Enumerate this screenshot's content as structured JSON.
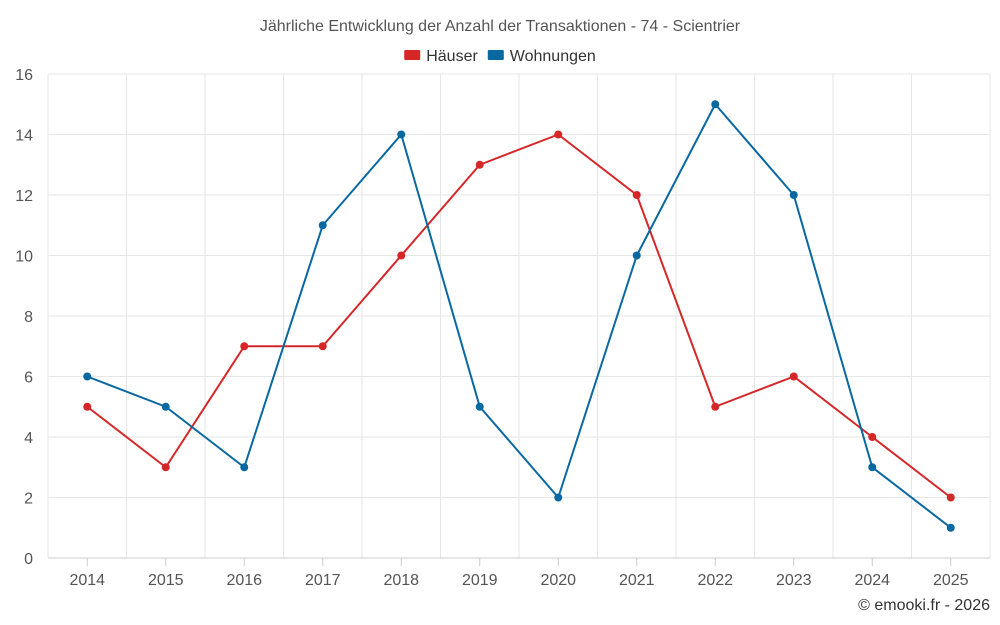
{
  "chart_data": {
    "type": "line",
    "title": "Jährliche Entwicklung der Anzahl der Transaktionen - 74 - Scientrier",
    "categories": [
      "2014",
      "2015",
      "2016",
      "2017",
      "2018",
      "2019",
      "2020",
      "2021",
      "2022",
      "2023",
      "2024",
      "2025"
    ],
    "series": [
      {
        "name": "Häuser",
        "color": "#d62728",
        "values": [
          5,
          3,
          7,
          7,
          10,
          13,
          14,
          12,
          5,
          6,
          4,
          2
        ]
      },
      {
        "name": "Wohnungen",
        "color": "#0868a0",
        "values": [
          6,
          5,
          3,
          11,
          14,
          5,
          2,
          10,
          15,
          12,
          3,
          1
        ]
      }
    ],
    "ylim": [
      0,
      16
    ],
    "yticks": [
      0,
      2,
      4,
      6,
      8,
      10,
      12,
      14,
      16
    ],
    "xlabel": "",
    "ylabel": "",
    "grid": true,
    "legend": "top-center"
  },
  "credit": "© emooki.fr - 2026"
}
